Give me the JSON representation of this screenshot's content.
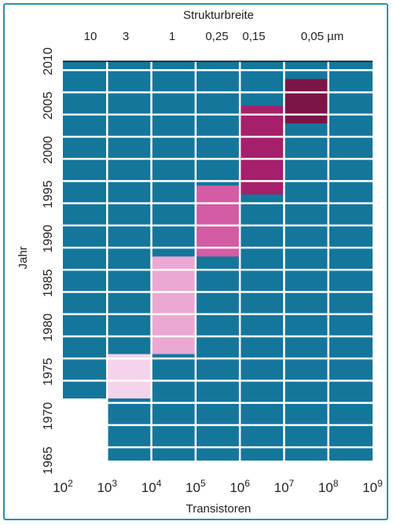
{
  "chart_data": {
    "type": "heatmap",
    "title": "",
    "top_axis": {
      "label": "Strukturbreite",
      "tick_labels": [
        "10",
        "3",
        "1",
        "0,25",
        "0,15",
        "0,05 µm"
      ]
    },
    "xlabel": "Transistoren",
    "x_tick_labels": [
      {
        "base": "10",
        "exp": "2"
      },
      {
        "base": "10",
        "exp": "3"
      },
      {
        "base": "10",
        "exp": "4"
      },
      {
        "base": "10",
        "exp": "5"
      },
      {
        "base": "10",
        "exp": "6"
      },
      {
        "base": "10",
        "exp": "7"
      },
      {
        "base": "10",
        "exp": "8"
      },
      {
        "base": "10",
        "exp": "9"
      }
    ],
    "x_scale": "log",
    "xlim": [
      100,
      1000000000
    ],
    "ylabel": "Jahr",
    "y_tick_labels": [
      "1965",
      "1970",
      "1975",
      "1980",
      "1985",
      "1990",
      "1995",
      "2000",
      "2005",
      "2010"
    ],
    "ylim": [
      1965,
      2010
    ],
    "grid": true,
    "background_color": "#15769c",
    "grid_color": "#ffffff",
    "regions": [
      {
        "x_range": [
          100,
          1000
        ],
        "year_range": [
          1965,
          1972
        ],
        "color": "#ffffff"
      },
      {
        "x_range": [
          1000,
          10000
        ],
        "year_range": [
          1972,
          1977
        ],
        "color": "#f6d3ec"
      },
      {
        "x_range": [
          10000,
          100000
        ],
        "year_range": [
          1977,
          1988
        ],
        "color": "#eba8d3"
      },
      {
        "x_range": [
          100000,
          1000000
        ],
        "year_range": [
          1988,
          1996
        ],
        "color": "#d35ca5"
      },
      {
        "x_range": [
          1000000,
          10000000
        ],
        "year_range": [
          1995,
          2005
        ],
        "color": "#a61f6a"
      },
      {
        "x_range": [
          10000000,
          100000000
        ],
        "year_range": [
          2003,
          2008
        ],
        "color": "#7b1548"
      }
    ]
  }
}
